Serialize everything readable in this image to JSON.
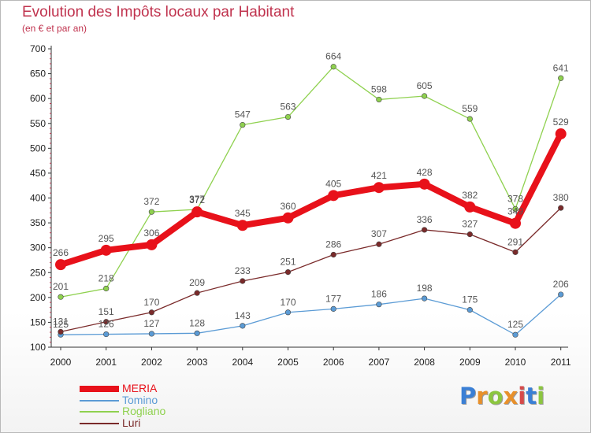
{
  "title": "Evolution des Impôts locaux par Habitant",
  "subtitle": "(en € et par an)",
  "logo": {
    "text": "Proxiti",
    "colors": [
      "#3a7fd5",
      "#e8902a",
      "#8cc63f",
      "#e8902a",
      "#d64a4a",
      "#3a7fd5",
      "#8cc63f"
    ]
  },
  "chart_data": {
    "type": "line",
    "x": [
      "2000",
      "2001",
      "2002",
      "2003",
      "2004",
      "2005",
      "2006",
      "2007",
      "2008",
      "2009",
      "2010",
      "2011"
    ],
    "ylim": [
      100,
      700
    ],
    "yticks": [
      100,
      150,
      200,
      250,
      300,
      350,
      400,
      450,
      500,
      550,
      600,
      650,
      700
    ],
    "grid": false,
    "legend_position": "bottom-left",
    "series": [
      {
        "name": "MERIA",
        "color": "#e8111a",
        "values": [
          266,
          295,
          306,
          372,
          345,
          360,
          405,
          421,
          428,
          382,
          349,
          529
        ],
        "labels": [
          "266",
          "295",
          "306",
          "372",
          "345",
          "360",
          "405",
          "421",
          "428",
          "382",
          "349",
          "529"
        ]
      },
      {
        "name": "Tomino",
        "color": "#5b9bd5",
        "values": [
          125,
          126,
          127,
          128,
          143,
          170,
          177,
          186,
          198,
          175,
          125,
          206
        ],
        "labels": [
          "125",
          "126",
          "127",
          "128",
          "143",
          "170",
          "177",
          "186",
          "198",
          "175",
          "125",
          "206"
        ]
      },
      {
        "name": "Rogliano",
        "color": "#8fd14f",
        "values": [
          201,
          218,
          372,
          377,
          547,
          563,
          664,
          598,
          605,
          559,
          378,
          641
        ],
        "labels": [
          "201",
          "218",
          "372",
          "377",
          "547",
          "563",
          "664",
          "598",
          "605",
          "559",
          "378",
          "641"
        ]
      },
      {
        "name": "Luri",
        "color": "#7a2a2a",
        "values": [
          131,
          151,
          170,
          209,
          233,
          251,
          286,
          307,
          336,
          327,
          291,
          380
        ],
        "labels": [
          "131",
          "151",
          "170",
          "209",
          "233",
          "251",
          "286",
          "307",
          "336",
          "327",
          "291",
          "380"
        ]
      }
    ]
  }
}
